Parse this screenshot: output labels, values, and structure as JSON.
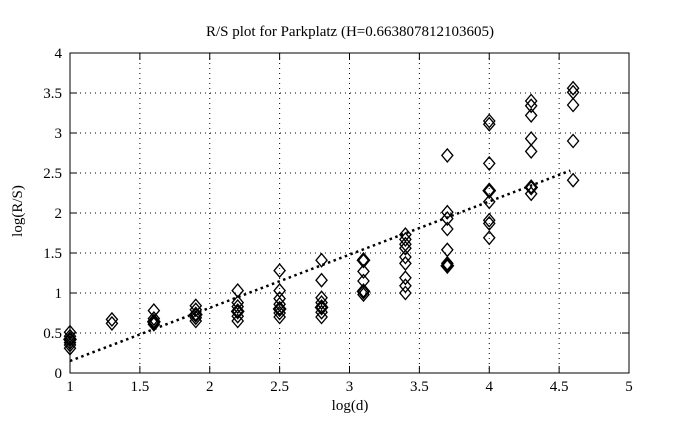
{
  "chart_data": {
    "type": "scatter",
    "title": "R/S plot for Parkplatz (H=0.663807812103605)",
    "xlabel": "log(d)",
    "ylabel": "log(R/S)",
    "xlim": [
      1,
      5
    ],
    "ylim": [
      0,
      4
    ],
    "xticks": {
      "values": [
        1,
        1.5,
        2,
        2.5,
        3,
        3.5,
        4,
        4.5,
        5
      ],
      "labels": [
        "1",
        "1.5",
        "2",
        "2.5",
        "3",
        "3.5",
        "4",
        "4.5",
        "5"
      ]
    },
    "yticks": {
      "values": [
        0,
        0.5,
        1,
        1.5,
        2,
        2.5,
        3,
        3.5,
        4
      ],
      "labels": [
        "0",
        "0.5",
        "1",
        "1.5",
        "2",
        "2.5",
        "3",
        "3.5",
        "4"
      ]
    },
    "grid": true,
    "legend_position": "none",
    "colors": {
      "foreground": "#000000",
      "background": "#ffffff"
    },
    "series": [
      {
        "name": "rs-points",
        "type": "scatter",
        "marker": "open-diamond",
        "points": [
          [
            1.0,
            0.51
          ],
          [
            1.0,
            0.46
          ],
          [
            1.0,
            0.42,
            1
          ],
          [
            1.0,
            0.38
          ],
          [
            1.0,
            0.35
          ],
          [
            1.0,
            0.31
          ],
          [
            1.3,
            0.67
          ],
          [
            1.3,
            0.62
          ],
          [
            1.6,
            0.78
          ],
          [
            1.6,
            0.68
          ],
          [
            1.6,
            0.64,
            1
          ],
          [
            1.6,
            0.61
          ],
          [
            1.9,
            0.84
          ],
          [
            1.9,
            0.79
          ],
          [
            1.9,
            0.73,
            1
          ],
          [
            1.9,
            0.69
          ],
          [
            1.9,
            0.65
          ],
          [
            2.2,
            1.03
          ],
          [
            2.2,
            0.88
          ],
          [
            2.2,
            0.83
          ],
          [
            2.2,
            0.77,
            1
          ],
          [
            2.2,
            0.71
          ],
          [
            2.2,
            0.65
          ],
          [
            2.5,
            1.28
          ],
          [
            2.5,
            1.03
          ],
          [
            2.5,
            0.93
          ],
          [
            2.5,
            0.86
          ],
          [
            2.5,
            0.8,
            1
          ],
          [
            2.5,
            0.75
          ],
          [
            2.5,
            0.7
          ],
          [
            2.8,
            1.41
          ],
          [
            2.8,
            1.16
          ],
          [
            2.8,
            0.94
          ],
          [
            2.8,
            0.88
          ],
          [
            2.8,
            0.82,
            1
          ],
          [
            2.8,
            0.76
          ],
          [
            2.8,
            0.7
          ],
          [
            3.1,
            1.41,
            1
          ],
          [
            3.1,
            1.27
          ],
          [
            3.1,
            1.15
          ],
          [
            3.1,
            1.02,
            1
          ],
          [
            3.1,
            0.98
          ],
          [
            3.4,
            1.73
          ],
          [
            3.4,
            1.67
          ],
          [
            3.4,
            1.61
          ],
          [
            3.4,
            1.56
          ],
          [
            3.4,
            1.45
          ],
          [
            3.4,
            1.37
          ],
          [
            3.4,
            1.19
          ],
          [
            3.4,
            1.09
          ],
          [
            3.4,
            1.0
          ],
          [
            3.7,
            2.72
          ],
          [
            3.7,
            2.01
          ],
          [
            3.7,
            1.93
          ],
          [
            3.7,
            1.8
          ],
          [
            3.7,
            1.54
          ],
          [
            3.7,
            1.37
          ],
          [
            3.7,
            1.34,
            1
          ],
          [
            4.0,
            3.15
          ],
          [
            4.0,
            3.11
          ],
          [
            4.0,
            2.62
          ],
          [
            4.0,
            2.28,
            1
          ],
          [
            4.0,
            2.14
          ],
          [
            4.0,
            1.91
          ],
          [
            4.0,
            1.87
          ],
          [
            4.0,
            1.69
          ],
          [
            4.3,
            3.4
          ],
          [
            4.3,
            3.34
          ],
          [
            4.3,
            3.22
          ],
          [
            4.3,
            2.93
          ],
          [
            4.3,
            2.77
          ],
          [
            4.3,
            2.32,
            1
          ],
          [
            4.3,
            2.24
          ],
          [
            4.6,
            3.56
          ],
          [
            4.6,
            3.51
          ],
          [
            4.6,
            3.35
          ],
          [
            4.6,
            2.9
          ],
          [
            4.6,
            2.41
          ]
        ]
      },
      {
        "name": "linear-fit",
        "type": "line",
        "style": "dotted",
        "points": [
          [
            1.0,
            0.15
          ],
          [
            4.58,
            2.53
          ]
        ]
      }
    ]
  }
}
